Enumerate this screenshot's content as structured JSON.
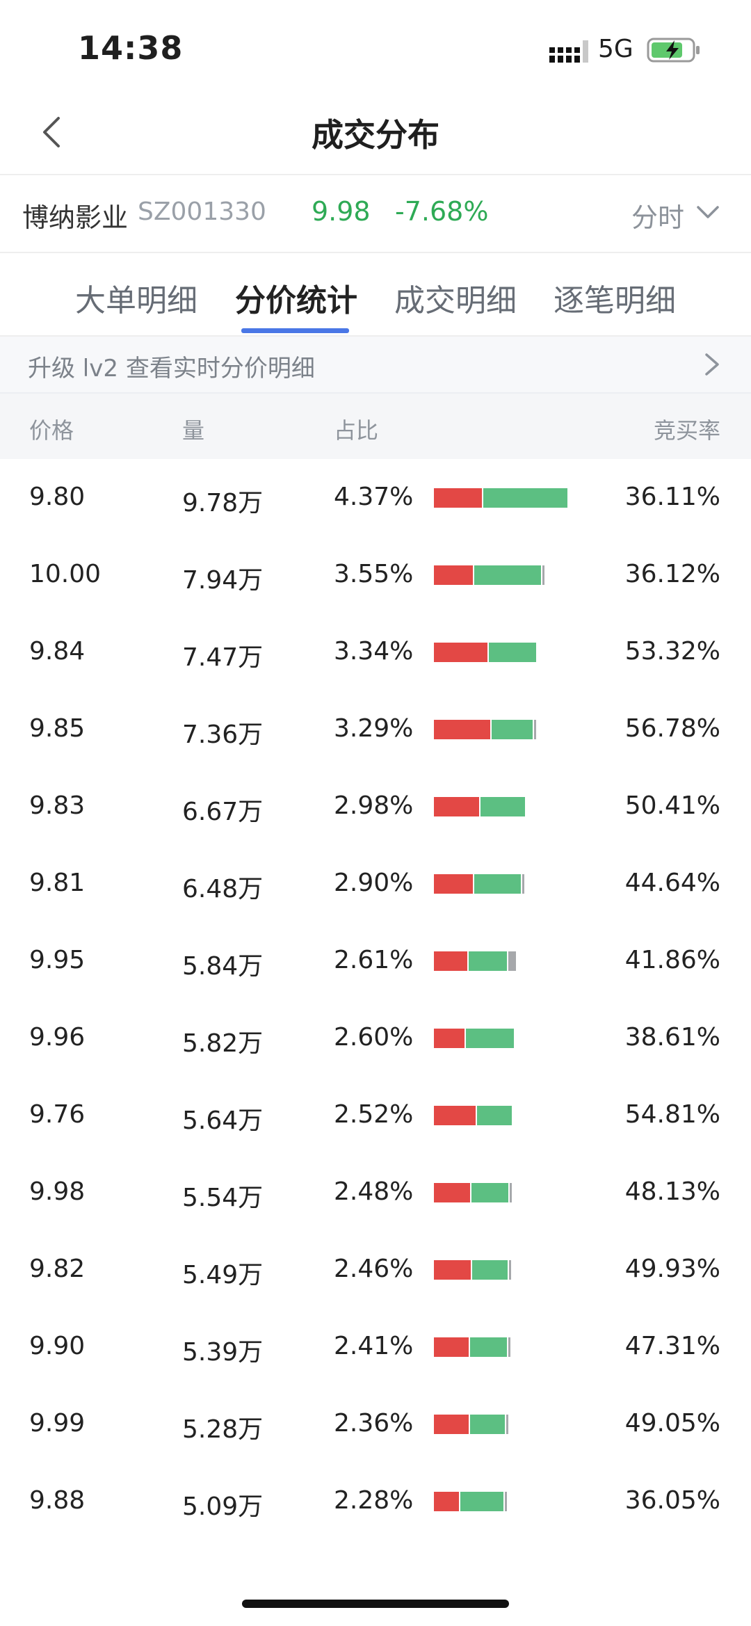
{
  "status_bar": {
    "time": "14:38",
    "network": "5G"
  },
  "nav": {
    "title": "成交分布"
  },
  "stock": {
    "name": "博纳影业",
    "code": "SZ001330",
    "price": "9.98",
    "change": "-7.68%",
    "period": "分时"
  },
  "tabs": [
    {
      "label": "大单明细",
      "active": false
    },
    {
      "label": "分价统计",
      "active": true
    },
    {
      "label": "成交明细",
      "active": false
    },
    {
      "label": "逐笔明细",
      "active": false
    }
  ],
  "upgrade": {
    "text": "升级 lv2 查看实时分价明细"
  },
  "table": {
    "headers": {
      "price": "价格",
      "volume": "量",
      "ratio": "占比",
      "buy_rate": "竞买率"
    },
    "rows": [
      {
        "price": "9.80",
        "volume": "9.78万",
        "ratio": "4.37%",
        "buy_rate": "36.11%",
        "bar": {
          "buy": 0.361,
          "sell": 0.639,
          "neutral": 0.0
        }
      },
      {
        "price": "10.00",
        "volume": "7.94万",
        "ratio": "3.55%",
        "buy_rate": "36.12%",
        "bar": {
          "buy": 0.361,
          "sell": 0.62,
          "neutral": 0.019
        }
      },
      {
        "price": "9.84",
        "volume": "7.47万",
        "ratio": "3.34%",
        "buy_rate": "53.32%",
        "bar": {
          "buy": 0.533,
          "sell": 0.467,
          "neutral": 0.0
        }
      },
      {
        "price": "9.85",
        "volume": "7.36万",
        "ratio": "3.29%",
        "buy_rate": "56.78%",
        "bar": {
          "buy": 0.568,
          "sell": 0.41,
          "neutral": 0.022
        }
      },
      {
        "price": "9.83",
        "volume": "6.67万",
        "ratio": "2.98%",
        "buy_rate": "50.41%",
        "bar": {
          "buy": 0.504,
          "sell": 0.496,
          "neutral": 0.0
        }
      },
      {
        "price": "9.81",
        "volume": "6.48万",
        "ratio": "2.90%",
        "buy_rate": "44.64%",
        "bar": {
          "buy": 0.446,
          "sell": 0.534,
          "neutral": 0.02
        }
      },
      {
        "price": "9.95",
        "volume": "5.84万",
        "ratio": "2.61%",
        "buy_rate": "41.86%",
        "bar": {
          "buy": 0.419,
          "sell": 0.481,
          "neutral": 0.1
        }
      },
      {
        "price": "9.96",
        "volume": "5.82万",
        "ratio": "2.60%",
        "buy_rate": "38.61%",
        "bar": {
          "buy": 0.386,
          "sell": 0.614,
          "neutral": 0.0
        }
      },
      {
        "price": "9.76",
        "volume": "5.64万",
        "ratio": "2.52%",
        "buy_rate": "54.81%",
        "bar": {
          "buy": 0.548,
          "sell": 0.452,
          "neutral": 0.0
        }
      },
      {
        "price": "9.98",
        "volume": "5.54万",
        "ratio": "2.48%",
        "buy_rate": "48.13%",
        "bar": {
          "buy": 0.481,
          "sell": 0.495,
          "neutral": 0.024
        }
      },
      {
        "price": "9.82",
        "volume": "5.49万",
        "ratio": "2.46%",
        "buy_rate": "49.93%",
        "bar": {
          "buy": 0.499,
          "sell": 0.48,
          "neutral": 0.021
        }
      },
      {
        "price": "9.90",
        "volume": "5.39万",
        "ratio": "2.41%",
        "buy_rate": "47.31%",
        "bar": {
          "buy": 0.473,
          "sell": 0.51,
          "neutral": 0.017
        }
      },
      {
        "price": "9.99",
        "volume": "5.28万",
        "ratio": "2.36%",
        "buy_rate": "49.05%",
        "bar": {
          "buy": 0.491,
          "sell": 0.491,
          "neutral": 0.018
        }
      },
      {
        "price": "9.88",
        "volume": "5.09万",
        "ratio": "2.28%",
        "buy_rate": "36.05%",
        "bar": {
          "buy": 0.36,
          "sell": 0.622,
          "neutral": 0.018
        }
      }
    ]
  },
  "colors": {
    "buy": "#e34845",
    "sell": "#5cbf82",
    "neutral": "#a6a8ab",
    "accent": "#4a77e6",
    "down": "#2eaa55"
  }
}
